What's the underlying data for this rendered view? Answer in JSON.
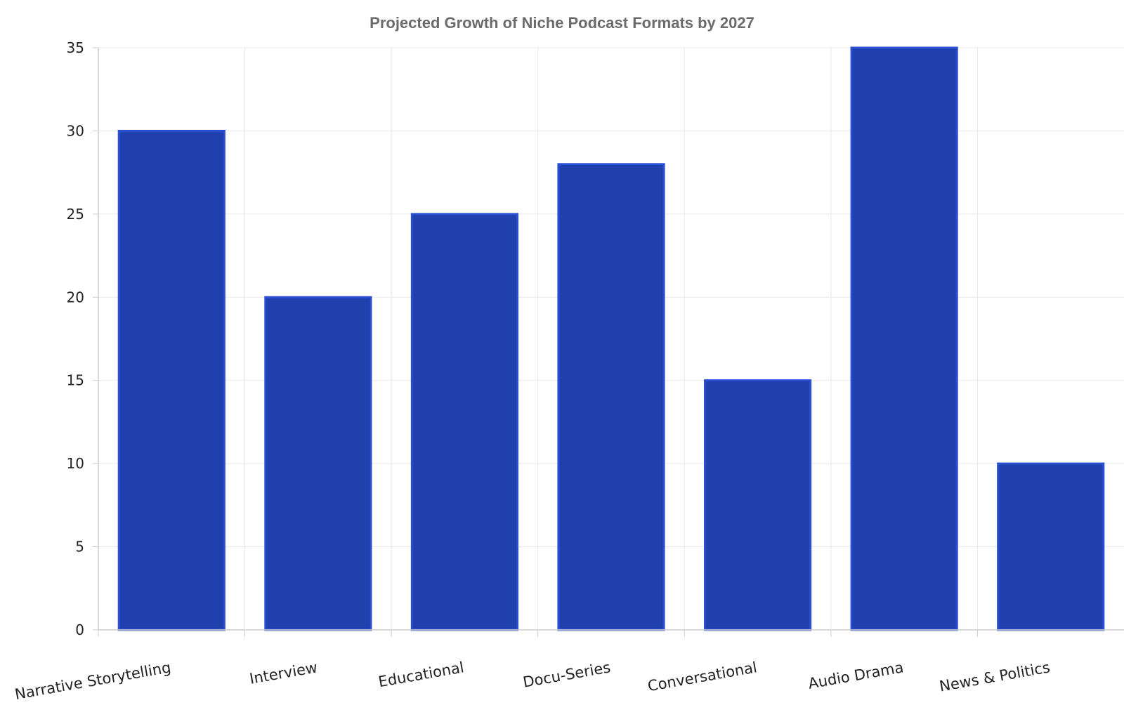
{
  "chart_data": {
    "type": "bar",
    "title": "Projected Growth of Niche Podcast Formats by 2027",
    "xlabel": "",
    "ylabel": "",
    "categories": [
      "Narrative Storytelling",
      "Interview",
      "Educational",
      "Docu-Series",
      "Conversational",
      "Audio Drama",
      "News & Politics"
    ],
    "values": [
      30,
      20,
      25,
      28,
      15,
      35,
      10
    ],
    "ylim": [
      0,
      35
    ],
    "yticks": [
      0,
      5,
      10,
      15,
      20,
      25,
      30,
      35
    ],
    "grid": true,
    "legend": "none",
    "colors": {
      "bar_fill": "#1f40ad",
      "bar_edge": "#2a4fd0",
      "grid": "#e8e8e8",
      "axis": "#cccccc",
      "title": "#6b6b6b"
    }
  }
}
